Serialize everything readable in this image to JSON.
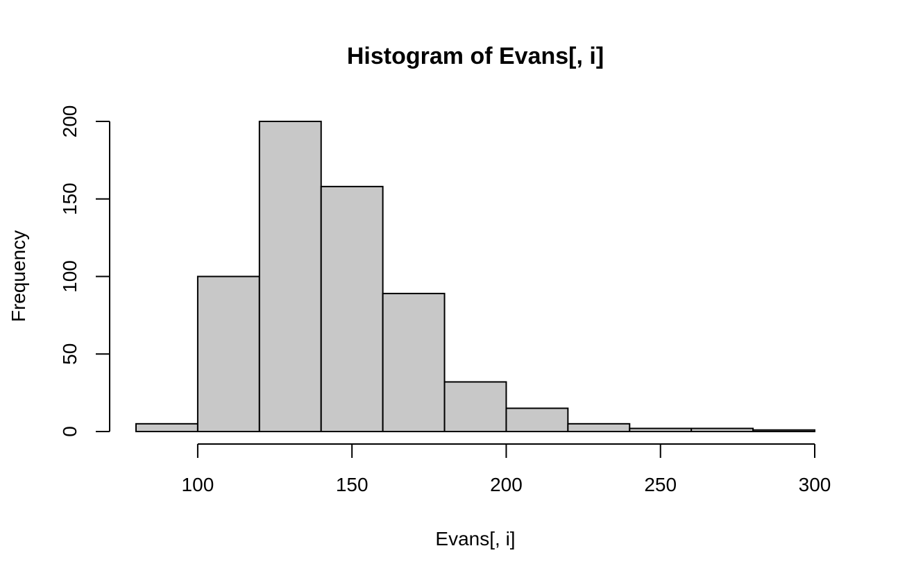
{
  "chart_data": {
    "type": "bar",
    "title": "Histogram of Evans[, i]",
    "xlabel": "Evans[, i]",
    "ylabel": "Frequency",
    "bin_edges": [
      80,
      100,
      120,
      140,
      160,
      180,
      200,
      220,
      240,
      260,
      280,
      300
    ],
    "values": [
      5,
      100,
      200,
      158,
      89,
      32,
      15,
      5,
      2,
      2,
      1
    ],
    "xlim": [
      80,
      300
    ],
    "ylim": [
      0,
      200
    ],
    "x_ticks": [
      100,
      150,
      200,
      250,
      300
    ],
    "y_ticks": [
      0,
      50,
      100,
      150,
      200
    ],
    "grid": false,
    "bar_color": "#c8c8c8"
  }
}
